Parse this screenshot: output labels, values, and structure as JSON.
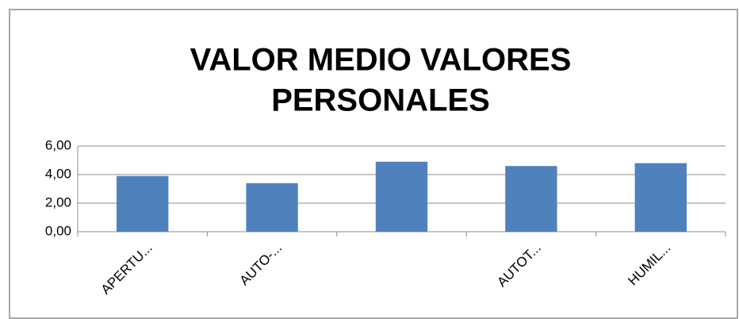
{
  "chart_data": {
    "type": "bar",
    "title": [
      "VALOR MEDIO VALORES",
      "PERSONALES"
    ],
    "categories": [
      "APERTU...",
      "AUTO-...",
      null,
      "AUTOT...",
      "HUMIL..."
    ],
    "values": [
      3.9,
      3.4,
      4.9,
      4.6,
      4.8
    ],
    "color": "#4f81bd",
    "ylim": [
      0,
      6
    ],
    "yticks": [
      {
        "value": 0,
        "label": "0,00"
      },
      {
        "value": 2,
        "label": "2,00"
      },
      {
        "value": 4,
        "label": "4,00"
      },
      {
        "value": 6,
        "label": "6,00"
      }
    ],
    "grid": true
  }
}
